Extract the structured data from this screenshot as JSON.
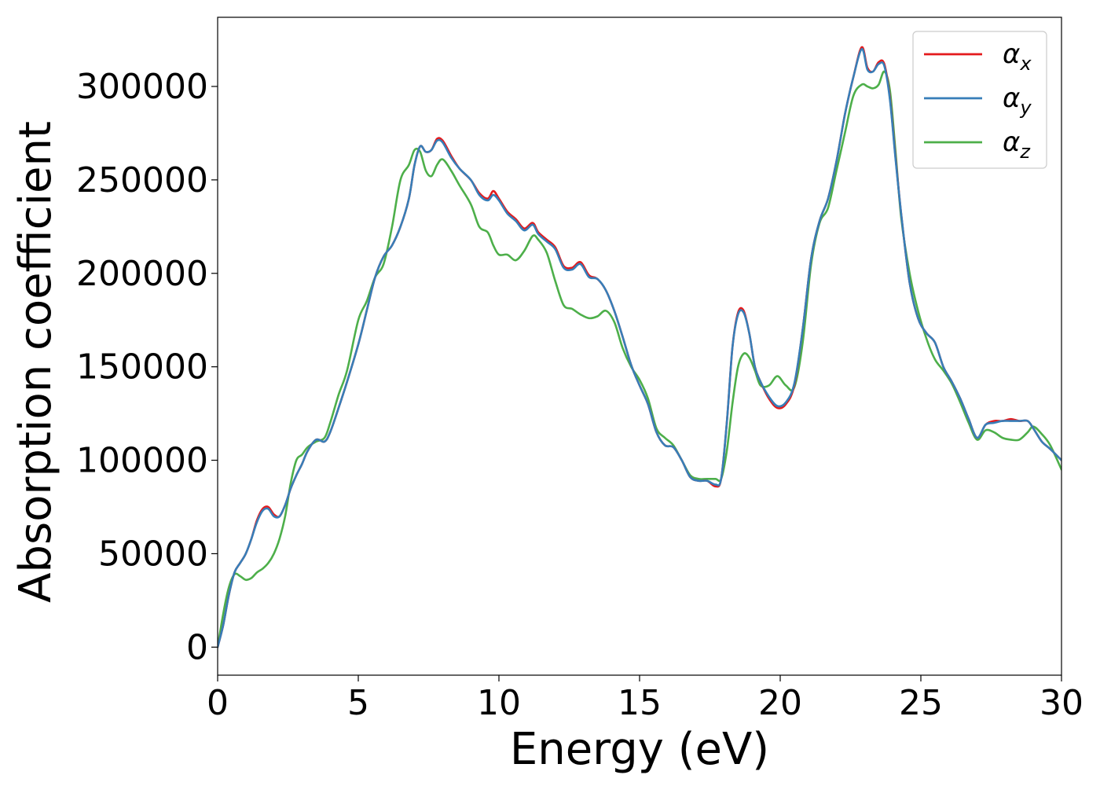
{
  "chart_data": {
    "type": "line",
    "title": "",
    "xlabel": "Energy (eV)",
    "ylabel": "Absorption coefficient",
    "xlim": [
      0,
      30
    ],
    "ylim": [
      -15000,
      337000
    ],
    "xticks": [
      0,
      5,
      10,
      15,
      20,
      25,
      30
    ],
    "yticks": [
      0,
      50000,
      100000,
      150000,
      200000,
      250000,
      300000
    ],
    "grid": false,
    "legend_position": "top-right",
    "colors": {
      "x": "#e41a1c",
      "y": "#377eb8",
      "z": "#4daf4a"
    },
    "series": [
      {
        "key": "x",
        "name": "α",
        "sub": "x",
        "x": [
          0,
          0.2,
          0.4,
          0.6,
          0.8,
          1.0,
          1.2,
          1.4,
          1.6,
          1.8,
          2.0,
          2.2,
          2.4,
          2.6,
          2.8,
          3.0,
          3.2,
          3.5,
          3.8,
          4.0,
          4.3,
          4.6,
          5.0,
          5.3,
          5.6,
          5.9,
          6.2,
          6.5,
          6.8,
          7.0,
          7.2,
          7.4,
          7.6,
          7.8,
          8.0,
          8.3,
          8.6,
          9.0,
          9.3,
          9.6,
          9.8,
          10.0,
          10.3,
          10.6,
          10.9,
          11.2,
          11.4,
          11.7,
          12.0,
          12.3,
          12.6,
          12.9,
          13.2,
          13.5,
          13.8,
          14.1,
          14.4,
          14.7,
          15.0,
          15.3,
          15.6,
          15.9,
          16.2,
          16.5,
          16.8,
          17.1,
          17.4,
          17.7,
          17.9,
          18.1,
          18.3,
          18.5,
          18.7,
          18.9,
          19.1,
          19.3,
          19.6,
          19.9,
          20.2,
          20.5,
          20.8,
          21.1,
          21.4,
          21.7,
          22.0,
          22.3,
          22.6,
          22.9,
          23.1,
          23.3,
          23.5,
          23.7,
          23.9,
          24.1,
          24.3,
          24.6,
          24.9,
          25.2,
          25.5,
          25.8,
          26.1,
          26.4,
          26.7,
          27.0,
          27.3,
          27.6,
          27.9,
          28.2,
          28.5,
          28.8,
          29.0,
          29.3,
          29.6,
          30.0
        ],
        "values": [
          0,
          12000,
          28000,
          40000,
          45000,
          50000,
          58000,
          68000,
          74000,
          75000,
          71000,
          70000,
          76000,
          85000,
          92000,
          98000,
          105000,
          111000,
          110000,
          115000,
          128000,
          142000,
          162000,
          180000,
          198000,
          209000,
          215000,
          225000,
          240000,
          258000,
          268000,
          265000,
          266000,
          272000,
          271000,
          263000,
          256000,
          250000,
          243000,
          240000,
          244000,
          240000,
          233000,
          229000,
          224000,
          227000,
          222000,
          218000,
          214000,
          204000,
          203000,
          206000,
          199000,
          197000,
          191000,
          180000,
          166000,
          151000,
          140000,
          130000,
          115000,
          108000,
          107000,
          100000,
          91000,
          89000,
          89000,
          86000,
          90000,
          120000,
          160000,
          179000,
          180000,
          168000,
          150000,
          142000,
          133000,
          128000,
          130000,
          140000,
          170000,
          208000,
          228000,
          240000,
          260000,
          285000,
          305000,
          321000,
          310000,
          308000,
          313000,
          312000,
          294000,
          262000,
          232000,
          195000,
          176000,
          168000,
          163000,
          150000,
          142000,
          133000,
          122000,
          112000,
          119000,
          121000,
          121000,
          122000,
          121000,
          121000,
          117000,
          110000,
          106000,
          100000
        ]
      },
      {
        "key": "y",
        "name": "α",
        "sub": "y",
        "x": [
          0,
          0.2,
          0.4,
          0.6,
          0.8,
          1.0,
          1.2,
          1.4,
          1.6,
          1.8,
          2.0,
          2.2,
          2.4,
          2.6,
          2.8,
          3.0,
          3.2,
          3.5,
          3.8,
          4.0,
          4.3,
          4.6,
          5.0,
          5.3,
          5.6,
          5.9,
          6.2,
          6.5,
          6.8,
          7.0,
          7.2,
          7.4,
          7.6,
          7.8,
          8.0,
          8.3,
          8.6,
          9.0,
          9.3,
          9.6,
          9.8,
          10.0,
          10.3,
          10.6,
          10.9,
          11.2,
          11.4,
          11.7,
          12.0,
          12.3,
          12.6,
          12.9,
          13.2,
          13.5,
          13.8,
          14.1,
          14.4,
          14.7,
          15.0,
          15.3,
          15.6,
          15.9,
          16.2,
          16.5,
          16.8,
          17.1,
          17.4,
          17.7,
          17.9,
          18.1,
          18.3,
          18.5,
          18.7,
          18.9,
          19.1,
          19.3,
          19.6,
          19.9,
          20.2,
          20.5,
          20.8,
          21.1,
          21.4,
          21.7,
          22.0,
          22.3,
          22.6,
          22.9,
          23.1,
          23.3,
          23.5,
          23.7,
          23.9,
          24.1,
          24.3,
          24.6,
          24.9,
          25.2,
          25.5,
          25.8,
          26.1,
          26.4,
          26.7,
          27.0,
          27.3,
          27.6,
          27.9,
          28.2,
          28.5,
          28.8,
          29.0,
          29.3,
          29.6,
          30.0
        ],
        "values": [
          0,
          12000,
          28000,
          40000,
          45000,
          50000,
          58000,
          67000,
          73000,
          74000,
          70000,
          70000,
          76000,
          85000,
          92000,
          98000,
          105000,
          111000,
          110000,
          115000,
          128000,
          142000,
          162000,
          180000,
          198000,
          209000,
          215000,
          225000,
          240000,
          258000,
          268000,
          265000,
          266000,
          271000,
          270000,
          262000,
          256000,
          250000,
          242000,
          239000,
          242000,
          239000,
          232000,
          228000,
          223000,
          226000,
          221000,
          217000,
          213000,
          203000,
          202000,
          205000,
          198000,
          197000,
          191000,
          180000,
          166000,
          151000,
          140000,
          130000,
          115000,
          108000,
          107000,
          100000,
          91000,
          89000,
          89000,
          87000,
          90000,
          120000,
          160000,
          178000,
          179000,
          168000,
          150000,
          142000,
          134000,
          129000,
          131000,
          141000,
          170000,
          208000,
          228000,
          240000,
          260000,
          285000,
          305000,
          320000,
          309000,
          308000,
          312000,
          311000,
          293000,
          261000,
          232000,
          195000,
          176000,
          168000,
          163000,
          150000,
          142000,
          133000,
          122000,
          112000,
          119000,
          120000,
          121000,
          121000,
          121000,
          121000,
          117000,
          110000,
          106000,
          100000
        ]
      },
      {
        "key": "z",
        "name": "α",
        "sub": "z",
        "x": [
          0,
          0.2,
          0.4,
          0.6,
          0.8,
          1.0,
          1.2,
          1.4,
          1.6,
          1.8,
          2.0,
          2.2,
          2.4,
          2.6,
          2.8,
          3.0,
          3.2,
          3.5,
          3.8,
          4.0,
          4.3,
          4.6,
          5.0,
          5.3,
          5.6,
          5.9,
          6.2,
          6.5,
          6.8,
          7.0,
          7.2,
          7.4,
          7.6,
          7.8,
          8.0,
          8.3,
          8.6,
          9.0,
          9.3,
          9.6,
          9.8,
          10.0,
          10.3,
          10.6,
          10.9,
          11.2,
          11.4,
          11.7,
          12.0,
          12.3,
          12.6,
          12.9,
          13.2,
          13.5,
          13.8,
          14.1,
          14.4,
          14.7,
          15.0,
          15.3,
          15.6,
          15.9,
          16.2,
          16.5,
          16.8,
          17.1,
          17.4,
          17.7,
          17.9,
          18.1,
          18.3,
          18.5,
          18.7,
          18.9,
          19.1,
          19.3,
          19.6,
          19.9,
          20.2,
          20.5,
          20.8,
          21.1,
          21.4,
          21.7,
          22.0,
          22.3,
          22.6,
          22.9,
          23.1,
          23.3,
          23.5,
          23.7,
          23.9,
          24.1,
          24.3,
          24.6,
          24.9,
          25.2,
          25.5,
          25.8,
          26.1,
          26.4,
          26.7,
          27.0,
          27.3,
          27.6,
          27.9,
          28.2,
          28.5,
          28.8,
          29.0,
          29.3,
          29.6,
          30.0
        ],
        "values": [
          0,
          18000,
          32000,
          39000,
          38000,
          36000,
          37000,
          40000,
          42000,
          45000,
          50000,
          58000,
          70000,
          88000,
          100000,
          103000,
          107000,
          110000,
          112000,
          120000,
          135000,
          148000,
          175000,
          185000,
          198000,
          205000,
          225000,
          250000,
          258000,
          266000,
          265000,
          255000,
          252000,
          258000,
          261000,
          255000,
          247000,
          237000,
          225000,
          222000,
          215000,
          210000,
          210000,
          207000,
          212000,
          220000,
          218000,
          211000,
          196000,
          183000,
          181000,
          178000,
          176000,
          177000,
          180000,
          174000,
          160000,
          150000,
          143000,
          133000,
          117000,
          112000,
          108000,
          100000,
          92000,
          90000,
          90000,
          90000,
          90000,
          105000,
          130000,
          150000,
          157000,
          155000,
          148000,
          140000,
          140000,
          145000,
          140000,
          139000,
          163000,
          205000,
          227000,
          235000,
          255000,
          275000,
          295000,
          301000,
          300000,
          299000,
          301000,
          308000,
          298000,
          265000,
          230000,
          200000,
          180000,
          165000,
          154000,
          148000,
          141000,
          131000,
          120000,
          111000,
          116000,
          115000,
          112000,
          111000,
          111000,
          115000,
          118000,
          114000,
          108000,
          95000
        ]
      }
    ]
  }
}
